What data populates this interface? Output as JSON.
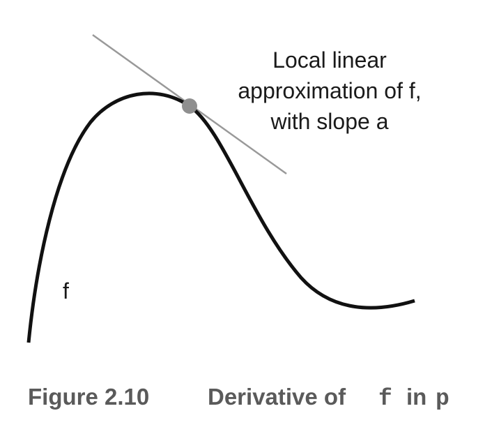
{
  "diagram": {
    "function_label": "f",
    "annotation_lines": [
      "Local linear",
      "approximation of f,",
      "with slope a"
    ]
  },
  "caption": {
    "figure_number": "Figure 2.10",
    "text_before": "Derivative of",
    "code_f": "f",
    "text_middle": "in",
    "code_p": "p"
  },
  "colors": {
    "curve": "#111111",
    "tangent_line": "#999999",
    "point": "#8f8f8f",
    "caption_text": "#5a5a5a"
  }
}
